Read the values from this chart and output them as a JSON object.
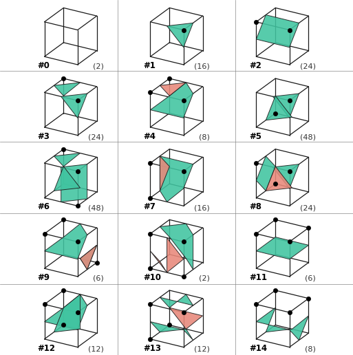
{
  "bg_color": "#ffffff",
  "grid_rows": 5,
  "grid_cols": 3,
  "teal_color": "#40c4a0",
  "pink_color": "#e8887a",
  "cube_edge_color": "#1a1a1a",
  "vertex_color": "#000000",
  "elev": 25,
  "azim": 210,
  "cases": [
    {
      "id": 0,
      "count": 2,
      "active_verts": []
    },
    {
      "id": 1,
      "count": 16,
      "active_verts": [
        7
      ]
    },
    {
      "id": 2,
      "count": 24,
      "active_verts": [
        7,
        6
      ]
    },
    {
      "id": 3,
      "count": 24,
      "active_verts": [
        7,
        5
      ]
    },
    {
      "id": 4,
      "count": 8,
      "active_verts": [
        7,
        6,
        5
      ]
    },
    {
      "id": 5,
      "count": 48,
      "active_verts": [
        7,
        1
      ]
    },
    {
      "id": 6,
      "count": 48,
      "active_verts": [
        7,
        5,
        3
      ]
    },
    {
      "id": 7,
      "count": 16,
      "active_verts": [
        7,
        6,
        2
      ]
    },
    {
      "id": 8,
      "count": 24,
      "active_verts": [
        7,
        6,
        1
      ]
    },
    {
      "id": 9,
      "count": 6,
      "active_verts": [
        7,
        5,
        6,
        0
      ]
    },
    {
      "id": 10,
      "count": 2,
      "active_verts": [
        7,
        6,
        3,
        2
      ]
    },
    {
      "id": 11,
      "count": 6,
      "active_verts": [
        7,
        6,
        5,
        4
      ]
    },
    {
      "id": 12,
      "count": 12,
      "active_verts": [
        7,
        6,
        5,
        1
      ]
    },
    {
      "id": 13,
      "count": 12,
      "active_verts": [
        7,
        6,
        2,
        1
      ]
    },
    {
      "id": 14,
      "count": 8,
      "active_verts": [
        7,
        6,
        5,
        4
      ]
    }
  ]
}
